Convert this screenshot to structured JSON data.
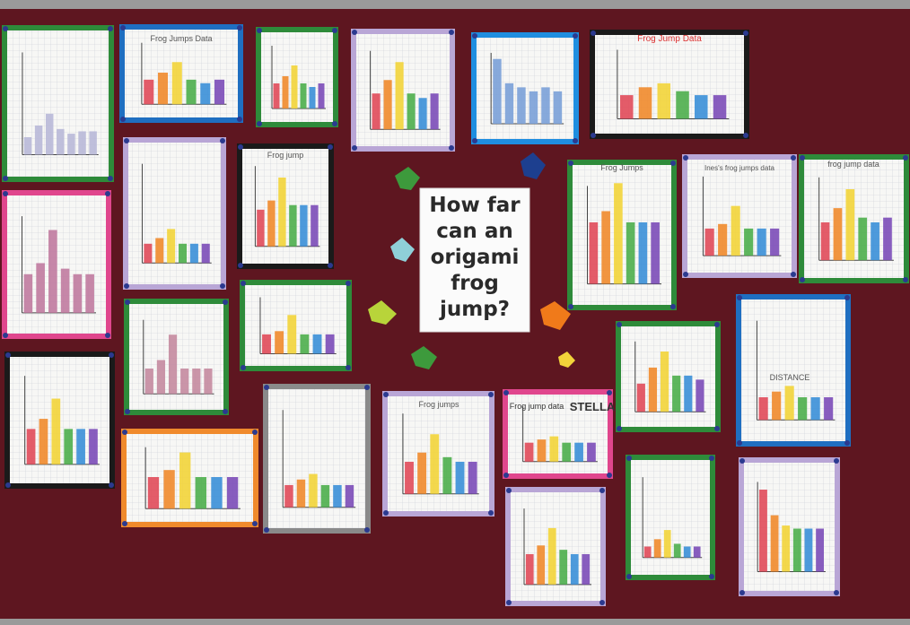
{
  "sign": {
    "lines": [
      "How far",
      "can an",
      "origami",
      "frog",
      "jump?"
    ]
  },
  "paper_titles": [
    "Frog Jumps Data",
    "Frog Jump Data",
    "Frog jump",
    "Frog Jumps",
    "Ines's frog jumps data",
    "frog jump data",
    "Frog jumps",
    "Frog jump data",
    "STELLA",
    "DISTANCE"
  ]
}
